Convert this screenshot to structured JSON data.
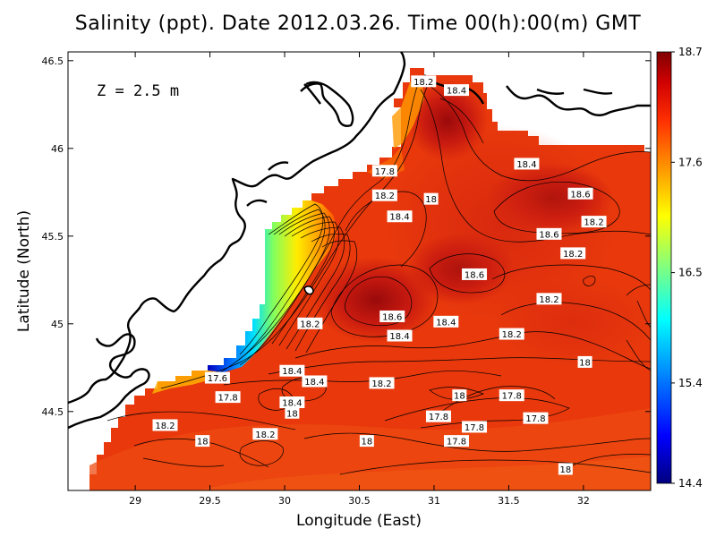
{
  "title": "Salinity (ppt). Date 2012.03.26. Time 00(h):00(m) GMT",
  "depth_label": "Z = 2.5 m",
  "chart_data": {
    "type": "heatmap",
    "variable": "Salinity (ppt)",
    "date": "2012.03.26",
    "time": "00(h):00(m) GMT",
    "depth": "Z = 2.5 m",
    "xlabel": "Longitude (East)",
    "ylabel": "Latitude (North)",
    "xlim": [
      28.55,
      32.45
    ],
    "ylim": [
      44.05,
      46.55
    ],
    "xticks": [
      "29",
      "29.5",
      "30",
      "30.5",
      "31",
      "31.5",
      "32"
    ],
    "yticks": [
      "44.5",
      "45",
      "45.5",
      "46",
      "46.5"
    ],
    "colorbar": {
      "min": 14.4,
      "max": 18.7,
      "ticks": [
        "18.7",
        "17.6",
        "16.5",
        "15.4",
        "14.4"
      ],
      "colors": [
        "#00007f",
        "#0000ff",
        "#00a0ff",
        "#00ffff",
        "#80ff80",
        "#ffff00",
        "#ffa000",
        "#ff3000",
        "#d00000",
        "#800000"
      ]
    },
    "contour_labels": [
      {
        "text": "18.2",
        "lon": 30.93,
        "lat": 46.38
      },
      {
        "text": "18.4",
        "lon": 31.15,
        "lat": 46.33
      },
      {
        "text": "17.8",
        "lon": 30.67,
        "lat": 45.87
      },
      {
        "text": "18.4",
        "lon": 31.62,
        "lat": 45.91
      },
      {
        "text": "18.2",
        "lon": 30.67,
        "lat": 45.73
      },
      {
        "text": "18",
        "lon": 30.98,
        "lat": 45.71
      },
      {
        "text": "18.6",
        "lon": 31.98,
        "lat": 45.74
      },
      {
        "text": "18.4",
        "lon": 30.77,
        "lat": 45.61
      },
      {
        "text": "18.2",
        "lon": 32.07,
        "lat": 45.58
      },
      {
        "text": "18.6",
        "lon": 31.77,
        "lat": 45.51
      },
      {
        "text": "18.2",
        "lon": 31.93,
        "lat": 45.4
      },
      {
        "text": "18.6",
        "lon": 31.27,
        "lat": 45.28
      },
      {
        "text": "18.2",
        "lon": 31.77,
        "lat": 45.14
      },
      {
        "text": "18.6",
        "lon": 30.72,
        "lat": 45.04
      },
      {
        "text": "18.2",
        "lon": 30.17,
        "lat": 45.0
      },
      {
        "text": "18.4",
        "lon": 31.08,
        "lat": 45.01
      },
      {
        "text": "18.4",
        "lon": 30.77,
        "lat": 44.93
      },
      {
        "text": "18.2",
        "lon": 31.52,
        "lat": 44.94
      },
      {
        "text": "18",
        "lon": 32.01,
        "lat": 44.78
      },
      {
        "text": "18.4",
        "lon": 30.05,
        "lat": 44.73
      },
      {
        "text": "18.4",
        "lon": 30.2,
        "lat": 44.67
      },
      {
        "text": "18.2",
        "lon": 30.65,
        "lat": 44.66
      },
      {
        "text": "17.6",
        "lon": 29.55,
        "lat": 44.69
      },
      {
        "text": "17.8",
        "lon": 29.62,
        "lat": 44.58
      },
      {
        "text": "18",
        "lon": 31.17,
        "lat": 44.59
      },
      {
        "text": "17.8",
        "lon": 31.52,
        "lat": 44.59
      },
      {
        "text": "18.4",
        "lon": 30.05,
        "lat": 44.55
      },
      {
        "text": "18",
        "lon": 30.05,
        "lat": 44.49
      },
      {
        "text": "17.8",
        "lon": 31.03,
        "lat": 44.47
      },
      {
        "text": "17.8",
        "lon": 31.68,
        "lat": 44.46
      },
      {
        "text": "17.8",
        "lon": 31.27,
        "lat": 44.41
      },
      {
        "text": "18.2",
        "lon": 29.2,
        "lat": 44.42
      },
      {
        "text": "18.2",
        "lon": 29.87,
        "lat": 44.37
      },
      {
        "text": "18",
        "lon": 29.45,
        "lat": 44.33
      },
      {
        "text": "18",
        "lon": 30.55,
        "lat": 44.33
      },
      {
        "text": "17.8",
        "lon": 31.15,
        "lat": 44.33
      },
      {
        "text": "18",
        "lon": 31.88,
        "lat": 44.17
      }
    ]
  }
}
